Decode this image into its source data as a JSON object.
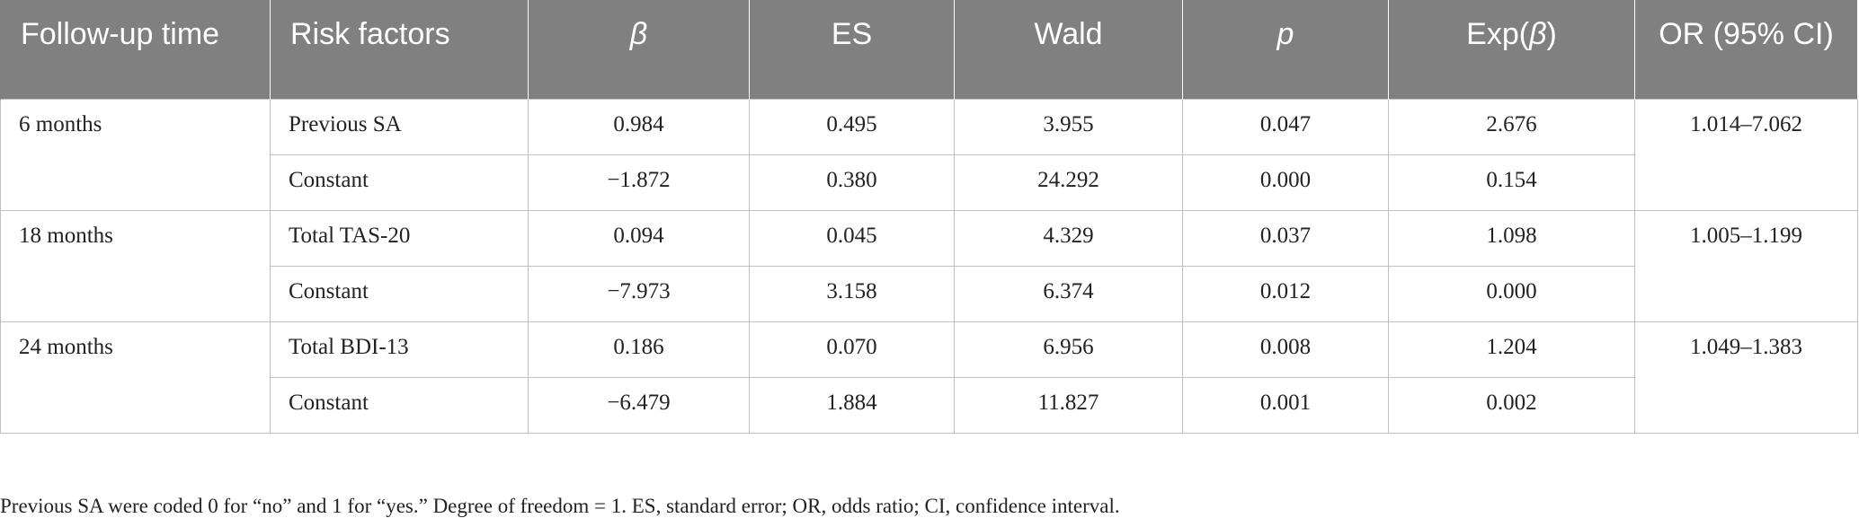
{
  "table": {
    "headers": {
      "follow_up": "Follow-up time",
      "risk_factors": "Risk factors",
      "beta": "β",
      "es": "ES",
      "wald": "Wald",
      "p": "p",
      "exp_beta_prefix": "Exp(",
      "exp_beta_symbol": "β",
      "exp_beta_suffix": ")",
      "or_ci": "OR (95% CI)"
    },
    "groups": [
      {
        "time": "6 months",
        "or_ci": "1.014–7.062",
        "rows": [
          {
            "factor": "Previous SA",
            "beta": "0.984",
            "es": "0.495",
            "wald": "3.955",
            "p": "0.047",
            "exp": "2.676"
          },
          {
            "factor": "Constant",
            "beta": "−1.872",
            "es": "0.380",
            "wald": "24.292",
            "p": "0.000",
            "exp": "0.154"
          }
        ]
      },
      {
        "time": "18 months",
        "or_ci": "1.005–1.199",
        "rows": [
          {
            "factor": "Total TAS-20",
            "beta": "0.094",
            "es": "0.045",
            "wald": "4.329",
            "p": "0.037",
            "exp": "1.098"
          },
          {
            "factor": "Constant",
            "beta": "−7.973",
            "es": "3.158",
            "wald": "6.374",
            "p": "0.012",
            "exp": "0.000"
          }
        ]
      },
      {
        "time": "24 months",
        "or_ci": "1.049–1.383",
        "rows": [
          {
            "factor": "Total BDI-13",
            "beta": "0.186",
            "es": "0.070",
            "wald": "6.956",
            "p": "0.008",
            "exp": "1.204"
          },
          {
            "factor": "Constant",
            "beta": "−6.479",
            "es": "1.884",
            "wald": "11.827",
            "p": "0.001",
            "exp": "0.002"
          }
        ]
      }
    ]
  },
  "footnote": "Previous SA were coded 0 for “no” and 1 for “yes.” Degree of freedom = 1. ES, standard error; OR, odds ratio; CI, confidence interval."
}
